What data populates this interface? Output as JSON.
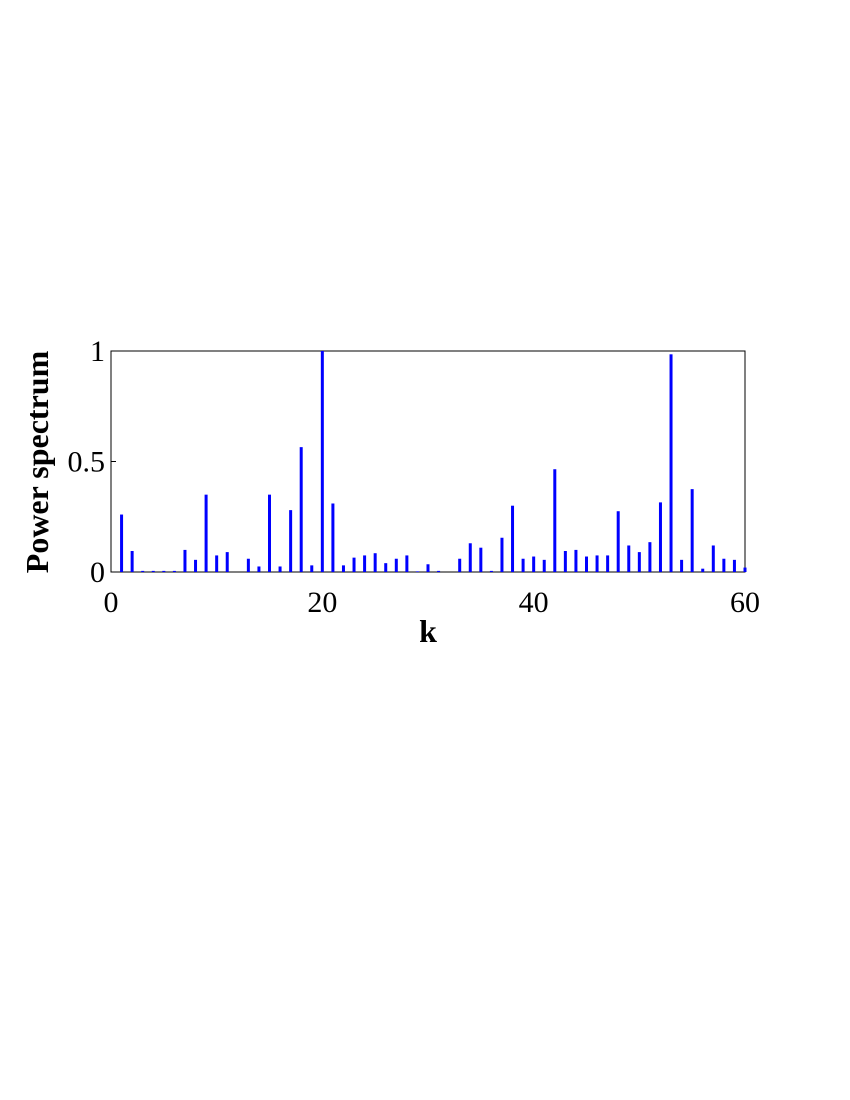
{
  "chart_data": {
    "type": "bar",
    "x_label": "k",
    "y_label": "Power spectrum",
    "x": [
      1,
      2,
      3,
      4,
      5,
      6,
      7,
      8,
      9,
      10,
      11,
      12,
      13,
      14,
      15,
      16,
      17,
      18,
      19,
      20,
      21,
      22,
      23,
      24,
      25,
      26,
      27,
      28,
      29,
      30,
      31,
      32,
      33,
      34,
      35,
      36,
      37,
      38,
      39,
      40,
      41,
      42,
      43,
      44,
      45,
      46,
      47,
      48,
      49,
      50,
      51,
      52,
      53,
      54,
      55,
      56,
      57,
      58,
      59,
      60
    ],
    "values": [
      0.26,
      0.095,
      0.005,
      0.005,
      0.005,
      0.005,
      0.1,
      0.055,
      0.35,
      0.075,
      0.09,
      0,
      0.06,
      0.025,
      0.35,
      0.025,
      0.28,
      0.565,
      0.03,
      1.0,
      0.31,
      0.03,
      0.065,
      0.075,
      0.085,
      0.04,
      0.06,
      0.075,
      0.003,
      0.035,
      0.005,
      0,
      0.06,
      0.13,
      0.11,
      0.005,
      0.155,
      0.3,
      0.06,
      0.07,
      0.055,
      0.465,
      0.095,
      0.1,
      0.07,
      0.075,
      0.075,
      0.275,
      0.12,
      0.09,
      0.135,
      0.315,
      0.985,
      0.055,
      0.375,
      0.015,
      0.12,
      0.06,
      0.055,
      0.02
    ],
    "color": "#0000ff",
    "xlim": [
      0,
      60
    ],
    "xticks": [
      0,
      20,
      40,
      60
    ],
    "ylim": [
      0,
      1
    ],
    "yticks": [
      0,
      0.5,
      1
    ],
    "grid": false
  }
}
